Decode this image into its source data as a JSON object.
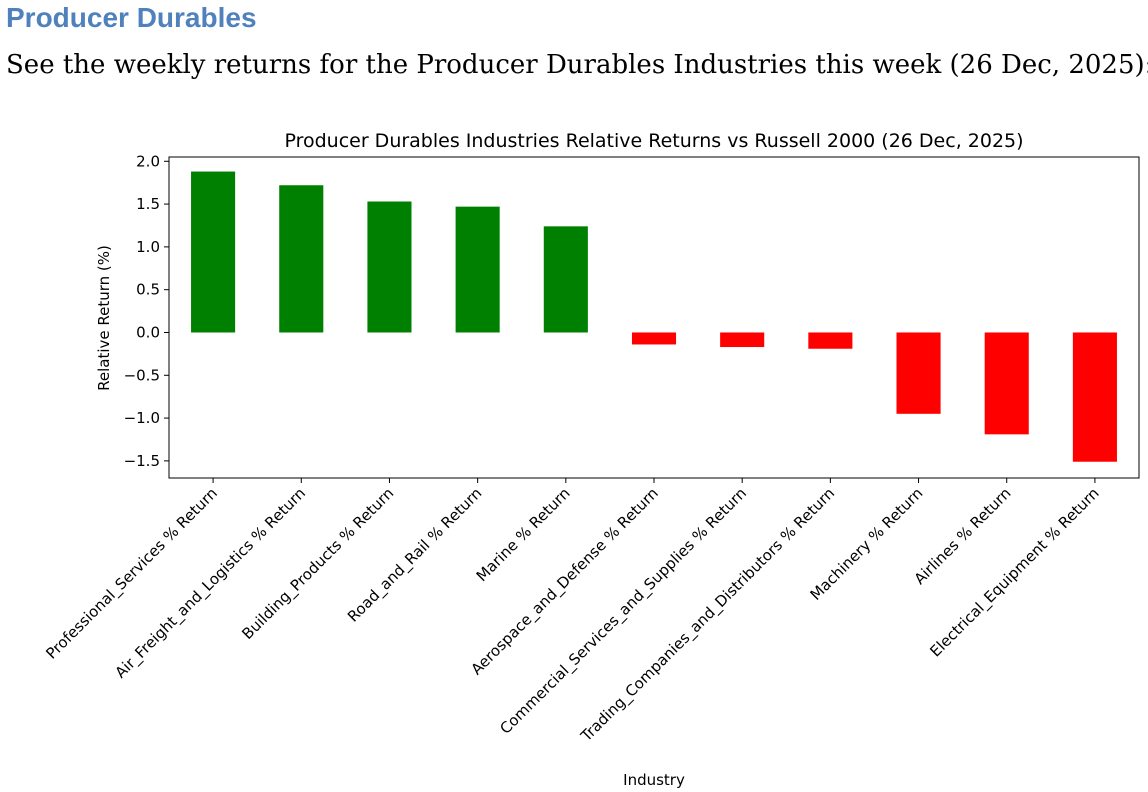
{
  "page": {
    "heading": "Producer Durables",
    "intro": "See the weekly returns for the Producer Durables Industries this week (26 Dec, 2025):"
  },
  "chart_data": {
    "type": "bar",
    "title": "Producer Durables Industries Relative Returns vs Russell 2000 (26 Dec, 2025)",
    "xlabel": "Industry",
    "ylabel": "Relative Return (%)",
    "ylim": [
      -1.7,
      2.05
    ],
    "yticks": [
      2.0,
      1.5,
      1.0,
      0.5,
      0.0,
      -0.5,
      -1.0,
      -1.5
    ],
    "ytick_labels": [
      "2.0",
      "1.5",
      "1.0",
      "0.5",
      "0.0",
      "−0.5",
      "−1.0",
      "−1.5"
    ],
    "grid": false,
    "categories": [
      "Professional_Services % Return",
      "Air_Freight_and_Logistics % Return",
      "Building_Products % Return",
      "Road_and_Rail % Return",
      "Marine % Return",
      "Aerospace_and_Defense % Return",
      "Commercial_Services_and_Supplies % Return",
      "Trading_Companies_and_Distributors % Return",
      "Machinery % Return",
      "Airlines % Return",
      "Electrical_Equipment % Return"
    ],
    "values": [
      1.88,
      1.72,
      1.53,
      1.47,
      1.24,
      -0.14,
      -0.17,
      -0.19,
      -0.95,
      -1.19,
      -1.51
    ],
    "colors": {
      "positive": "#008000",
      "negative": "#ff0000"
    }
  }
}
